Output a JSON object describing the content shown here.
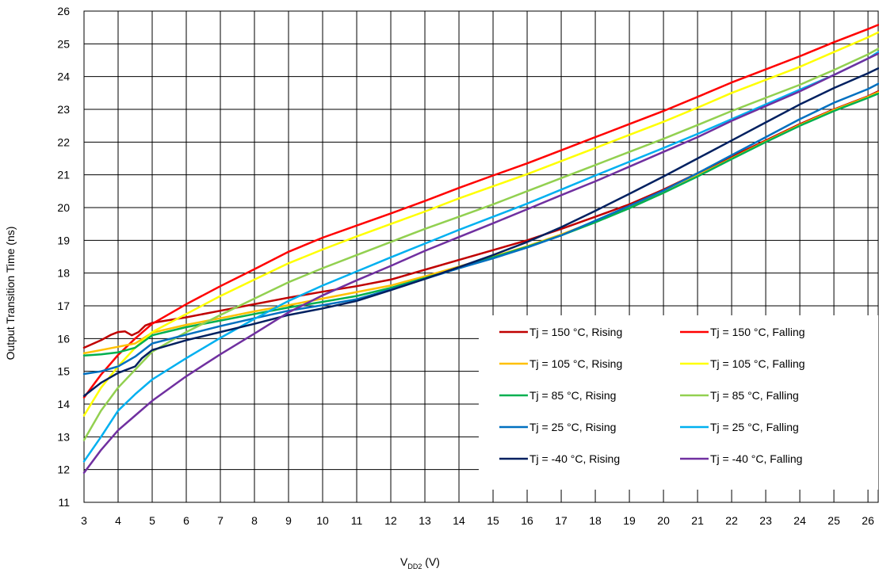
{
  "chart_data": {
    "type": "line",
    "title": "",
    "xlabel_main": "V",
    "xlabel_sub": "DD2",
    "xlabel_unit": " (V)",
    "ylabel": "Output Transition Time (ns)",
    "xlim": [
      3,
      26.3
    ],
    "ylim": [
      11,
      26
    ],
    "x_ticks": [
      3,
      4,
      5,
      6,
      7,
      8,
      9,
      10,
      11,
      12,
      13,
      14,
      15,
      16,
      17,
      18,
      19,
      20,
      21,
      22,
      23,
      24,
      25,
      26
    ],
    "y_ticks": [
      11,
      12,
      13,
      14,
      15,
      16,
      17,
      18,
      19,
      20,
      21,
      22,
      23,
      24,
      25,
      26
    ],
    "grid": true,
    "legend_position": "lower-right",
    "series": [
      {
        "name": "Tj = 150 °C, Rising",
        "color": "#c00000",
        "points": [
          [
            3,
            15.72
          ],
          [
            3.5,
            15.95
          ],
          [
            3.8,
            16.12
          ],
          [
            4,
            16.2
          ],
          [
            4.2,
            16.22
          ],
          [
            4.4,
            16.1
          ],
          [
            4.6,
            16.2
          ],
          [
            4.8,
            16.4
          ],
          [
            5,
            16.48
          ],
          [
            6,
            16.65
          ],
          [
            7,
            16.85
          ],
          [
            8,
            17.05
          ],
          [
            9,
            17.25
          ],
          [
            10,
            17.43
          ],
          [
            11,
            17.6
          ],
          [
            12,
            17.8
          ],
          [
            13,
            18.1
          ],
          [
            14,
            18.4
          ],
          [
            15,
            18.7
          ],
          [
            16,
            19.0
          ],
          [
            17,
            19.35
          ],
          [
            18,
            19.72
          ],
          [
            19,
            20.1
          ],
          [
            20,
            20.55
          ],
          [
            21,
            21.05
          ],
          [
            22,
            21.55
          ],
          [
            23,
            22.05
          ],
          [
            24,
            22.55
          ],
          [
            25,
            23.0
          ],
          [
            26,
            23.4
          ],
          [
            26.3,
            23.55
          ]
        ]
      },
      {
        "name": "Tj = 150 °C, Falling",
        "color": "#ff0000",
        "points": [
          [
            3,
            14.2
          ],
          [
            3.5,
            14.9
          ],
          [
            4,
            15.5
          ],
          [
            4.5,
            16.0
          ],
          [
            5,
            16.45
          ],
          [
            6,
            17.05
          ],
          [
            7,
            17.6
          ],
          [
            8,
            18.12
          ],
          [
            9,
            18.65
          ],
          [
            10,
            19.08
          ],
          [
            11,
            19.45
          ],
          [
            12,
            19.82
          ],
          [
            13,
            20.2
          ],
          [
            14,
            20.6
          ],
          [
            15,
            20.98
          ],
          [
            16,
            21.35
          ],
          [
            17,
            21.75
          ],
          [
            18,
            22.15
          ],
          [
            19,
            22.55
          ],
          [
            20,
            22.95
          ],
          [
            21,
            23.38
          ],
          [
            22,
            23.82
          ],
          [
            23,
            24.22
          ],
          [
            24,
            24.62
          ],
          [
            25,
            25.05
          ],
          [
            26,
            25.45
          ],
          [
            26.3,
            25.58
          ]
        ]
      },
      {
        "name": "Tj = 105 °C, Rising",
        "color": "#ffc000",
        "points": [
          [
            3,
            15.55
          ],
          [
            3.5,
            15.65
          ],
          [
            4,
            15.75
          ],
          [
            4.5,
            15.85
          ],
          [
            5,
            16.18
          ],
          [
            6,
            16.42
          ],
          [
            7,
            16.62
          ],
          [
            8,
            16.83
          ],
          [
            9,
            17.02
          ],
          [
            10,
            17.22
          ],
          [
            11,
            17.42
          ],
          [
            12,
            17.62
          ],
          [
            13,
            17.9
          ],
          [
            14,
            18.2
          ],
          [
            15,
            18.5
          ],
          [
            16,
            18.82
          ],
          [
            17,
            19.18
          ],
          [
            18,
            19.58
          ],
          [
            19,
            20.0
          ],
          [
            20,
            20.45
          ],
          [
            21,
            20.98
          ],
          [
            22,
            21.5
          ],
          [
            23,
            22.02
          ],
          [
            24,
            22.52
          ],
          [
            25,
            22.98
          ],
          [
            26,
            23.38
          ],
          [
            26.3,
            23.52
          ]
        ]
      },
      {
        "name": "Tj = 105 °C, Falling",
        "color": "#ffff00",
        "points": [
          [
            3,
            13.65
          ],
          [
            3.5,
            14.5
          ],
          [
            4,
            15.15
          ],
          [
            4.5,
            15.72
          ],
          [
            5,
            16.2
          ],
          [
            6,
            16.75
          ],
          [
            7,
            17.3
          ],
          [
            8,
            17.8
          ],
          [
            9,
            18.3
          ],
          [
            10,
            18.72
          ],
          [
            11,
            19.12
          ],
          [
            12,
            19.5
          ],
          [
            13,
            19.88
          ],
          [
            14,
            20.28
          ],
          [
            15,
            20.65
          ],
          [
            16,
            21.02
          ],
          [
            17,
            21.42
          ],
          [
            18,
            21.82
          ],
          [
            19,
            22.22
          ],
          [
            20,
            22.62
          ],
          [
            21,
            23.05
          ],
          [
            22,
            23.5
          ],
          [
            23,
            23.9
          ],
          [
            24,
            24.3
          ],
          [
            25,
            24.75
          ],
          [
            26,
            25.2
          ],
          [
            26.3,
            25.35
          ]
        ]
      },
      {
        "name": "Tj = 85 °C, Rising",
        "color": "#00b050",
        "points": [
          [
            3,
            15.48
          ],
          [
            3.5,
            15.52
          ],
          [
            4,
            15.58
          ],
          [
            4.5,
            15.72
          ],
          [
            5,
            16.1
          ],
          [
            6,
            16.35
          ],
          [
            7,
            16.55
          ],
          [
            8,
            16.75
          ],
          [
            9,
            16.95
          ],
          [
            10,
            17.12
          ],
          [
            11,
            17.3
          ],
          [
            12,
            17.55
          ],
          [
            13,
            17.85
          ],
          [
            14,
            18.15
          ],
          [
            15,
            18.48
          ],
          [
            16,
            18.8
          ],
          [
            17,
            19.15
          ],
          [
            18,
            19.55
          ],
          [
            19,
            19.98
          ],
          [
            20,
            20.45
          ],
          [
            21,
            20.95
          ],
          [
            22,
            21.48
          ],
          [
            23,
            22.0
          ],
          [
            24,
            22.5
          ],
          [
            25,
            22.95
          ],
          [
            26,
            23.35
          ],
          [
            26.3,
            23.48
          ]
        ]
      },
      {
        "name": "Tj = 85 °C, Falling",
        "color": "#92d050",
        "points": [
          [
            3,
            12.9
          ],
          [
            3.5,
            13.8
          ],
          [
            4,
            14.5
          ],
          [
            4.5,
            15.05
          ],
          [
            5,
            15.6
          ],
          [
            6,
            16.2
          ],
          [
            7,
            16.72
          ],
          [
            8,
            17.22
          ],
          [
            9,
            17.72
          ],
          [
            10,
            18.15
          ],
          [
            11,
            18.55
          ],
          [
            12,
            18.95
          ],
          [
            13,
            19.35
          ],
          [
            14,
            19.72
          ],
          [
            15,
            20.1
          ],
          [
            16,
            20.5
          ],
          [
            17,
            20.9
          ],
          [
            18,
            21.3
          ],
          [
            19,
            21.7
          ],
          [
            20,
            22.1
          ],
          [
            21,
            22.52
          ],
          [
            22,
            22.95
          ],
          [
            23,
            23.35
          ],
          [
            24,
            23.75
          ],
          [
            25,
            24.2
          ],
          [
            26,
            24.68
          ],
          [
            26.3,
            24.85
          ]
        ]
      },
      {
        "name": "Tj = 25 °C, Rising",
        "color": "#0070c0",
        "points": [
          [
            3,
            14.92
          ],
          [
            3.5,
            15.0
          ],
          [
            4,
            15.15
          ],
          [
            4.5,
            15.45
          ],
          [
            5,
            15.85
          ],
          [
            6,
            16.12
          ],
          [
            7,
            16.38
          ],
          [
            8,
            16.62
          ],
          [
            9,
            16.85
          ],
          [
            10,
            17.02
          ],
          [
            11,
            17.2
          ],
          [
            12,
            17.5
          ],
          [
            13,
            17.82
          ],
          [
            14,
            18.15
          ],
          [
            15,
            18.45
          ],
          [
            16,
            18.78
          ],
          [
            17,
            19.15
          ],
          [
            18,
            19.6
          ],
          [
            19,
            20.05
          ],
          [
            20,
            20.52
          ],
          [
            21,
            21.05
          ],
          [
            22,
            21.6
          ],
          [
            23,
            22.15
          ],
          [
            24,
            22.7
          ],
          [
            25,
            23.2
          ],
          [
            26,
            23.62
          ],
          [
            26.3,
            23.78
          ]
        ]
      },
      {
        "name": "Tj = 25 °C, Falling",
        "color": "#00b0f0",
        "points": [
          [
            3,
            12.25
          ],
          [
            3.5,
            13.0
          ],
          [
            4,
            13.8
          ],
          [
            4.5,
            14.3
          ],
          [
            5,
            14.75
          ],
          [
            6,
            15.4
          ],
          [
            7,
            16.02
          ],
          [
            8,
            16.6
          ],
          [
            9,
            17.15
          ],
          [
            10,
            17.62
          ],
          [
            11,
            18.05
          ],
          [
            12,
            18.48
          ],
          [
            13,
            18.9
          ],
          [
            14,
            19.32
          ],
          [
            15,
            19.72
          ],
          [
            16,
            20.12
          ],
          [
            17,
            20.55
          ],
          [
            18,
            20.98
          ],
          [
            19,
            21.4
          ],
          [
            20,
            21.82
          ],
          [
            21,
            22.25
          ],
          [
            22,
            22.7
          ],
          [
            23,
            23.15
          ],
          [
            24,
            23.6
          ],
          [
            25,
            24.05
          ],
          [
            26,
            24.55
          ],
          [
            26.3,
            24.75
          ]
        ]
      },
      {
        "name": "Tj = -40 °C, Rising",
        "color": "#002060",
        "points": [
          [
            3,
            14.25
          ],
          [
            3.5,
            14.65
          ],
          [
            4,
            14.95
          ],
          [
            4.5,
            15.15
          ],
          [
            4.7,
            15.4
          ],
          [
            5,
            15.65
          ],
          [
            6,
            15.95
          ],
          [
            7,
            16.2
          ],
          [
            8,
            16.45
          ],
          [
            9,
            16.72
          ],
          [
            10,
            16.92
          ],
          [
            11,
            17.15
          ],
          [
            12,
            17.48
          ],
          [
            13,
            17.82
          ],
          [
            14,
            18.18
          ],
          [
            15,
            18.55
          ],
          [
            16,
            18.95
          ],
          [
            17,
            19.4
          ],
          [
            18,
            19.9
          ],
          [
            19,
            20.42
          ],
          [
            20,
            20.95
          ],
          [
            21,
            21.5
          ],
          [
            22,
            22.05
          ],
          [
            23,
            22.6
          ],
          [
            24,
            23.15
          ],
          [
            25,
            23.65
          ],
          [
            26,
            24.1
          ],
          [
            26.3,
            24.25
          ]
        ]
      },
      {
        "name": "Tj = -40 °C, Falling",
        "color": "#7030a0",
        "points": [
          [
            3,
            11.9
          ],
          [
            3.5,
            12.6
          ],
          [
            4,
            13.2
          ],
          [
            4.5,
            13.65
          ],
          [
            5,
            14.1
          ],
          [
            6,
            14.85
          ],
          [
            7,
            15.52
          ],
          [
            8,
            16.15
          ],
          [
            9,
            16.8
          ],
          [
            10,
            17.32
          ],
          [
            11,
            17.78
          ],
          [
            12,
            18.22
          ],
          [
            13,
            18.68
          ],
          [
            14,
            19.1
          ],
          [
            15,
            19.52
          ],
          [
            16,
            19.95
          ],
          [
            17,
            20.38
          ],
          [
            18,
            20.8
          ],
          [
            19,
            21.25
          ],
          [
            20,
            21.7
          ],
          [
            21,
            22.15
          ],
          [
            22,
            22.65
          ],
          [
            23,
            23.1
          ],
          [
            24,
            23.55
          ],
          [
            25,
            24.05
          ],
          [
            26,
            24.55
          ],
          [
            26.3,
            24.7
          ]
        ]
      }
    ],
    "legend": [
      {
        "label": "Tj = 150 °C, Rising",
        "color": "#c00000"
      },
      {
        "label": "Tj = 150 °C, Falling",
        "color": "#ff0000"
      },
      {
        "label": "Tj = 105 °C, Rising",
        "color": "#ffc000"
      },
      {
        "label": "Tj = 105 °C, Falling",
        "color": "#ffff00"
      },
      {
        "label": "Tj = 85 °C, Rising",
        "color": "#00b050"
      },
      {
        "label": "Tj = 85 °C, Falling",
        "color": "#92d050"
      },
      {
        "label": "Tj = 25 °C, Rising",
        "color": "#0070c0"
      },
      {
        "label": "Tj = 25 °C, Falling",
        "color": "#00b0f0"
      },
      {
        "label": "Tj = -40 °C, Rising",
        "color": "#002060"
      },
      {
        "label": "Tj = -40 °C, Falling",
        "color": "#7030a0"
      }
    ]
  }
}
